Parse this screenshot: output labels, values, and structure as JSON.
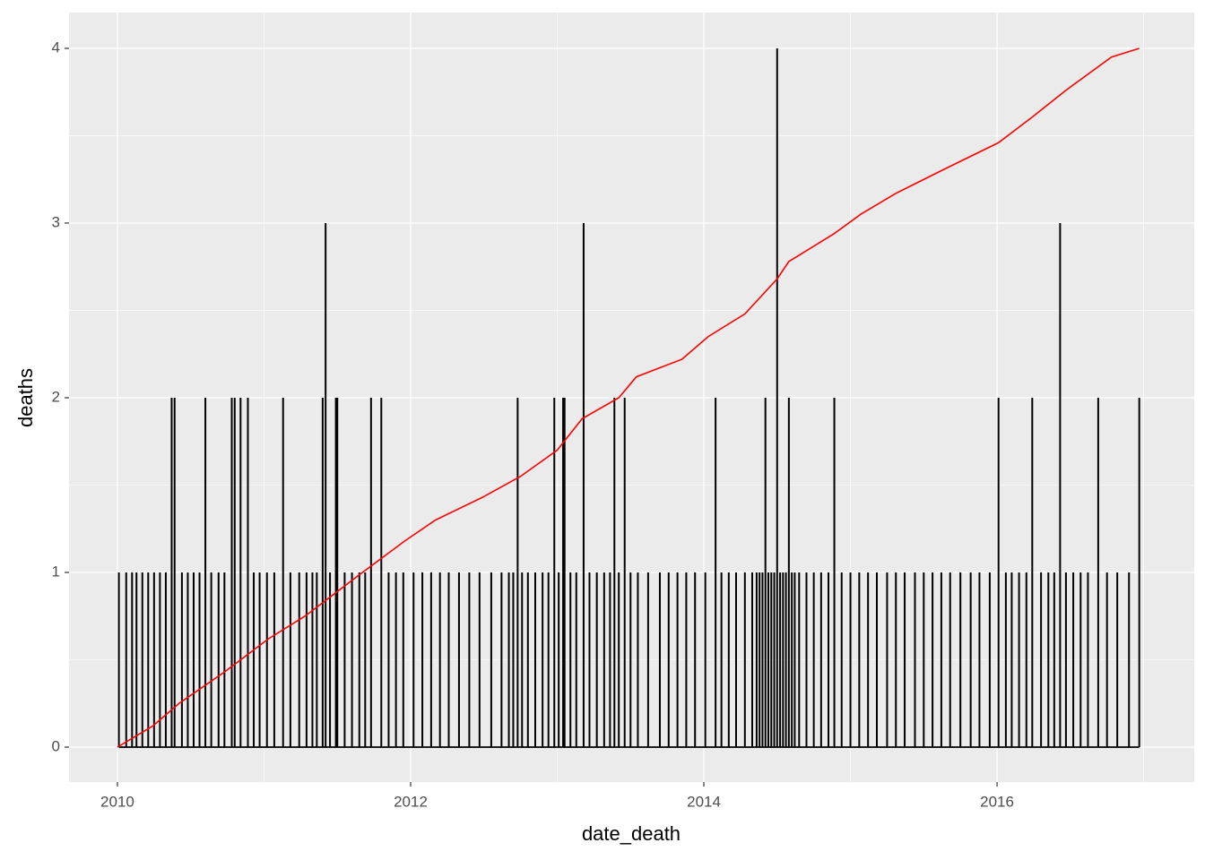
{
  "chart_data": {
    "type": "line",
    "x_label": "date_death",
    "y_label": "deaths",
    "xlim": [
      2009.67,
      2017.345
    ],
    "xticks": [
      2010,
      2012,
      2014,
      2016
    ],
    "ylim": [
      -0.2,
      4.205
    ],
    "yticks": [
      0,
      1,
      2,
      3,
      4
    ],
    "grid": true,
    "background": "#ebebeb",
    "series": [
      {
        "color": "#000000",
        "style": "spike",
        "x": [
          2010.01,
          2010.06,
          2010.1,
          2010.13,
          2010.17,
          2010.21,
          2010.25,
          2010.29,
          2010.33,
          2010.37,
          2010.39,
          2010.44,
          2010.48,
          2010.52,
          2010.56,
          2010.6,
          2010.64,
          2010.69,
          2010.73,
          2010.78,
          2010.8,
          2010.84,
          2010.89,
          2010.93,
          2010.97,
          2011.02,
          2011.07,
          2011.13,
          2011.18,
          2011.24,
          2011.29,
          2011.33,
          2011.36,
          2011.4,
          2011.42,
          2011.45,
          2011.49,
          2011.5,
          2011.55,
          2011.6,
          2011.65,
          2011.69,
          2011.73,
          2011.8,
          2011.85,
          2011.9,
          2011.95,
          2012.02,
          2012.08,
          2012.14,
          2012.2,
          2012.26,
          2012.33,
          2012.4,
          2012.47,
          2012.55,
          2012.62,
          2012.67,
          2012.7,
          2012.73,
          2012.76,
          2012.8,
          2012.85,
          2012.9,
          2012.94,
          2012.98,
          2013.01,
          2013.04,
          2013.05,
          2013.09,
          2013.13,
          2013.18,
          2013.22,
          2013.27,
          2013.32,
          2013.36,
          2013.39,
          2013.42,
          2013.46,
          2013.5,
          2013.55,
          2013.62,
          2013.7,
          2013.76,
          2013.82,
          2013.88,
          2013.94,
          2014.01,
          2014.08,
          2014.12,
          2014.17,
          2014.22,
          2014.28,
          2014.33,
          2014.36,
          2014.38,
          2014.4,
          2014.42,
          2014.44,
          2014.46,
          2014.48,
          2014.5,
          2014.52,
          2014.54,
          2014.56,
          2014.58,
          2014.6,
          2014.62,
          2014.65,
          2014.7,
          2014.75,
          2014.8,
          2014.85,
          2014.89,
          2014.94,
          2015.0,
          2015.06,
          2015.12,
          2015.18,
          2015.25,
          2015.31,
          2015.37,
          2015.44,
          2015.5,
          2015.56,
          2015.62,
          2015.68,
          2015.75,
          2015.82,
          2015.88,
          2015.95,
          2016.01,
          2016.06,
          2016.1,
          2016.15,
          2016.2,
          2016.24,
          2016.3,
          2016.35,
          2016.39,
          2016.43,
          2016.47,
          2016.52,
          2016.57,
          2016.62,
          2016.69,
          2016.75,
          2016.82,
          2016.9,
          2016.97
        ],
        "values": [
          1,
          1,
          1,
          1,
          1,
          1,
          1,
          1,
          1,
          2,
          2,
          1,
          1,
          1,
          1,
          2,
          1,
          1,
          1,
          2,
          2,
          2,
          2,
          1,
          1,
          1,
          1,
          2,
          1,
          1,
          1,
          1,
          1,
          2,
          3,
          1,
          2,
          2,
          1,
          1,
          1,
          1,
          2,
          2,
          1,
          1,
          1,
          1,
          1,
          1,
          1,
          1,
          1,
          1,
          1,
          1,
          1,
          1,
          1,
          2,
          1,
          1,
          1,
          1,
          1,
          2,
          1,
          2,
          2,
          1,
          1,
          3,
          1,
          1,
          1,
          1,
          2,
          1,
          2,
          1,
          1,
          1,
          1,
          1,
          1,
          1,
          1,
          1,
          2,
          1,
          1,
          1,
          1,
          1,
          1,
          1,
          1,
          2,
          1,
          1,
          1,
          4,
          1,
          1,
          1,
          2,
          1,
          1,
          1,
          1,
          1,
          1,
          1,
          2,
          1,
          1,
          1,
          1,
          1,
          1,
          1,
          1,
          1,
          1,
          1,
          1,
          1,
          1,
          1,
          1,
          1,
          2,
          1,
          1,
          1,
          1,
          2,
          1,
          1,
          1,
          3,
          1,
          1,
          1,
          1,
          2,
          1,
          1,
          1,
          2
        ]
      },
      {
        "color": "#ff0000",
        "x": [
          2010.0,
          2010.24,
          2010.42,
          2010.73,
          2011.03,
          2011.28,
          2011.64,
          2011.8,
          2011.96,
          2012.17,
          2012.49,
          2012.75,
          2013.0,
          2013.17,
          2013.42,
          2013.54,
          2013.85,
          2014.03,
          2014.28,
          2014.5,
          2014.58,
          2014.89,
          2015.07,
          2015.31,
          2015.62,
          2016.01,
          2016.23,
          2016.47,
          2016.78,
          2016.97
        ],
        "values": [
          0.0,
          0.12,
          0.25,
          0.43,
          0.62,
          0.75,
          0.98,
          1.08,
          1.18,
          1.3,
          1.43,
          1.55,
          1.7,
          1.88,
          2.0,
          2.12,
          2.22,
          2.35,
          2.48,
          2.68,
          2.78,
          2.94,
          3.05,
          3.17,
          3.3,
          3.46,
          3.6,
          3.76,
          3.95,
          4.0
        ]
      }
    ]
  }
}
